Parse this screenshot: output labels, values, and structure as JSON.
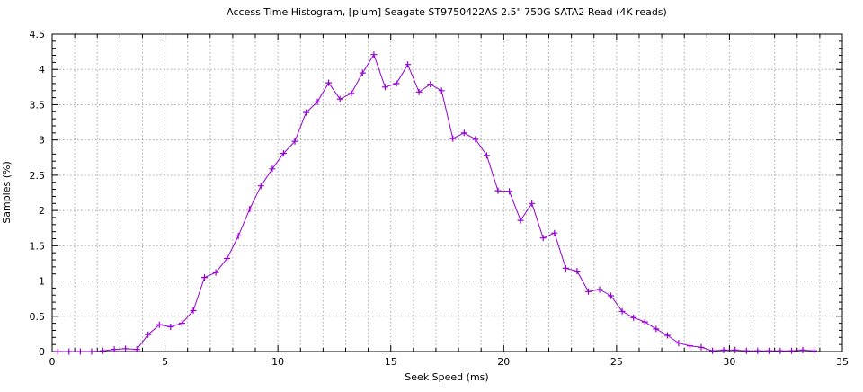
{
  "title": "Access Time Histogram, [plum] Seagate ST9750422AS 2.5\" 750G SATA2 Read (4K reads)",
  "colors": {
    "series_line": "#9400d3",
    "grid": "#a8a8a8",
    "axis": "#000000",
    "background": "#ffffff",
    "text": "#000000"
  },
  "chart_data": {
    "type": "line",
    "title": "Access Time Histogram, [plum] Seagate ST9750422AS 2.5\" 750G SATA2 Read (4K reads)",
    "xlabel": "Seek Speed (ms)",
    "ylabel": "Samples (%)",
    "xlim": [
      0,
      35
    ],
    "ylim": [
      0,
      4.5
    ],
    "grid": true,
    "legend": "none",
    "marker": "plus",
    "x_major_tick_step": 5,
    "x_minor_tick_step": 1,
    "y_major_tick_step": 0.5,
    "y_minor_tick_step": 0.1,
    "x_ticks": [
      {
        "v": 0,
        "label": "0"
      },
      {
        "v": 5,
        "label": "5"
      },
      {
        "v": 10,
        "label": "10"
      },
      {
        "v": 15,
        "label": "15"
      },
      {
        "v": 20,
        "label": "20"
      },
      {
        "v": 25,
        "label": "25"
      },
      {
        "v": 30,
        "label": "30"
      },
      {
        "v": 35,
        "label": "35"
      }
    ],
    "y_ticks": [
      {
        "v": 0,
        "label": "0"
      },
      {
        "v": 0.5,
        "label": "0.5"
      },
      {
        "v": 1,
        "label": "1"
      },
      {
        "v": 1.5,
        "label": "1.5"
      },
      {
        "v": 2,
        "label": "2"
      },
      {
        "v": 2.5,
        "label": "2.5"
      },
      {
        "v": 3,
        "label": "3"
      },
      {
        "v": 3.5,
        "label": "3.5"
      },
      {
        "v": 4,
        "label": "4"
      },
      {
        "v": 4.5,
        "label": "4.5"
      }
    ],
    "series": [
      {
        "name": "Seagate ST9750422AS 2.5\" 750G SATA2 Read (4K reads)",
        "color": "#9400d3",
        "x": [
          0.25,
          0.75,
          1.25,
          1.75,
          2.25,
          2.75,
          3.25,
          3.75,
          4.25,
          4.75,
          5.25,
          5.75,
          6.25,
          6.75,
          7.25,
          7.75,
          8.25,
          8.75,
          9.25,
          9.75,
          10.25,
          10.75,
          11.25,
          11.75,
          12.25,
          12.75,
          13.25,
          13.75,
          14.25,
          14.75,
          15.25,
          15.75,
          16.25,
          16.75,
          17.25,
          17.75,
          18.25,
          18.75,
          19.25,
          19.75,
          20.25,
          20.75,
          21.25,
          21.75,
          22.25,
          22.75,
          23.25,
          23.75,
          24.25,
          24.75,
          25.25,
          25.75,
          26.25,
          26.75,
          27.25,
          27.75,
          28.25,
          28.75,
          29.25,
          29.75,
          30.25,
          30.75,
          31.25,
          31.75,
          32.25,
          32.75,
          33.25,
          33.75
        ],
        "y": [
          0,
          0,
          0,
          0,
          0.01,
          0.03,
          0.04,
          0.03,
          0.24,
          0.38,
          0.35,
          0.4,
          0.58,
          1.05,
          1.12,
          1.32,
          1.64,
          2.02,
          2.35,
          2.59,
          2.81,
          2.98,
          3.39,
          3.54,
          3.81,
          3.58,
          3.66,
          3.95,
          4.21,
          3.75,
          3.8,
          4.07,
          3.68,
          3.79,
          3.7,
          3.02,
          3.1,
          3.01,
          2.78,
          2.28,
          2.27,
          1.86,
          2.1,
          1.61,
          1.68,
          1.18,
          1.14,
          0.85,
          0.88,
          0.79,
          0.57,
          0.48,
          0.42,
          0.32,
          0.23,
          0.12,
          0.08,
          0.06,
          0.01,
          0.02,
          0.02,
          0.01,
          0.01,
          0.01,
          0.01,
          0.01,
          0.02,
          0.01
        ]
      }
    ]
  }
}
